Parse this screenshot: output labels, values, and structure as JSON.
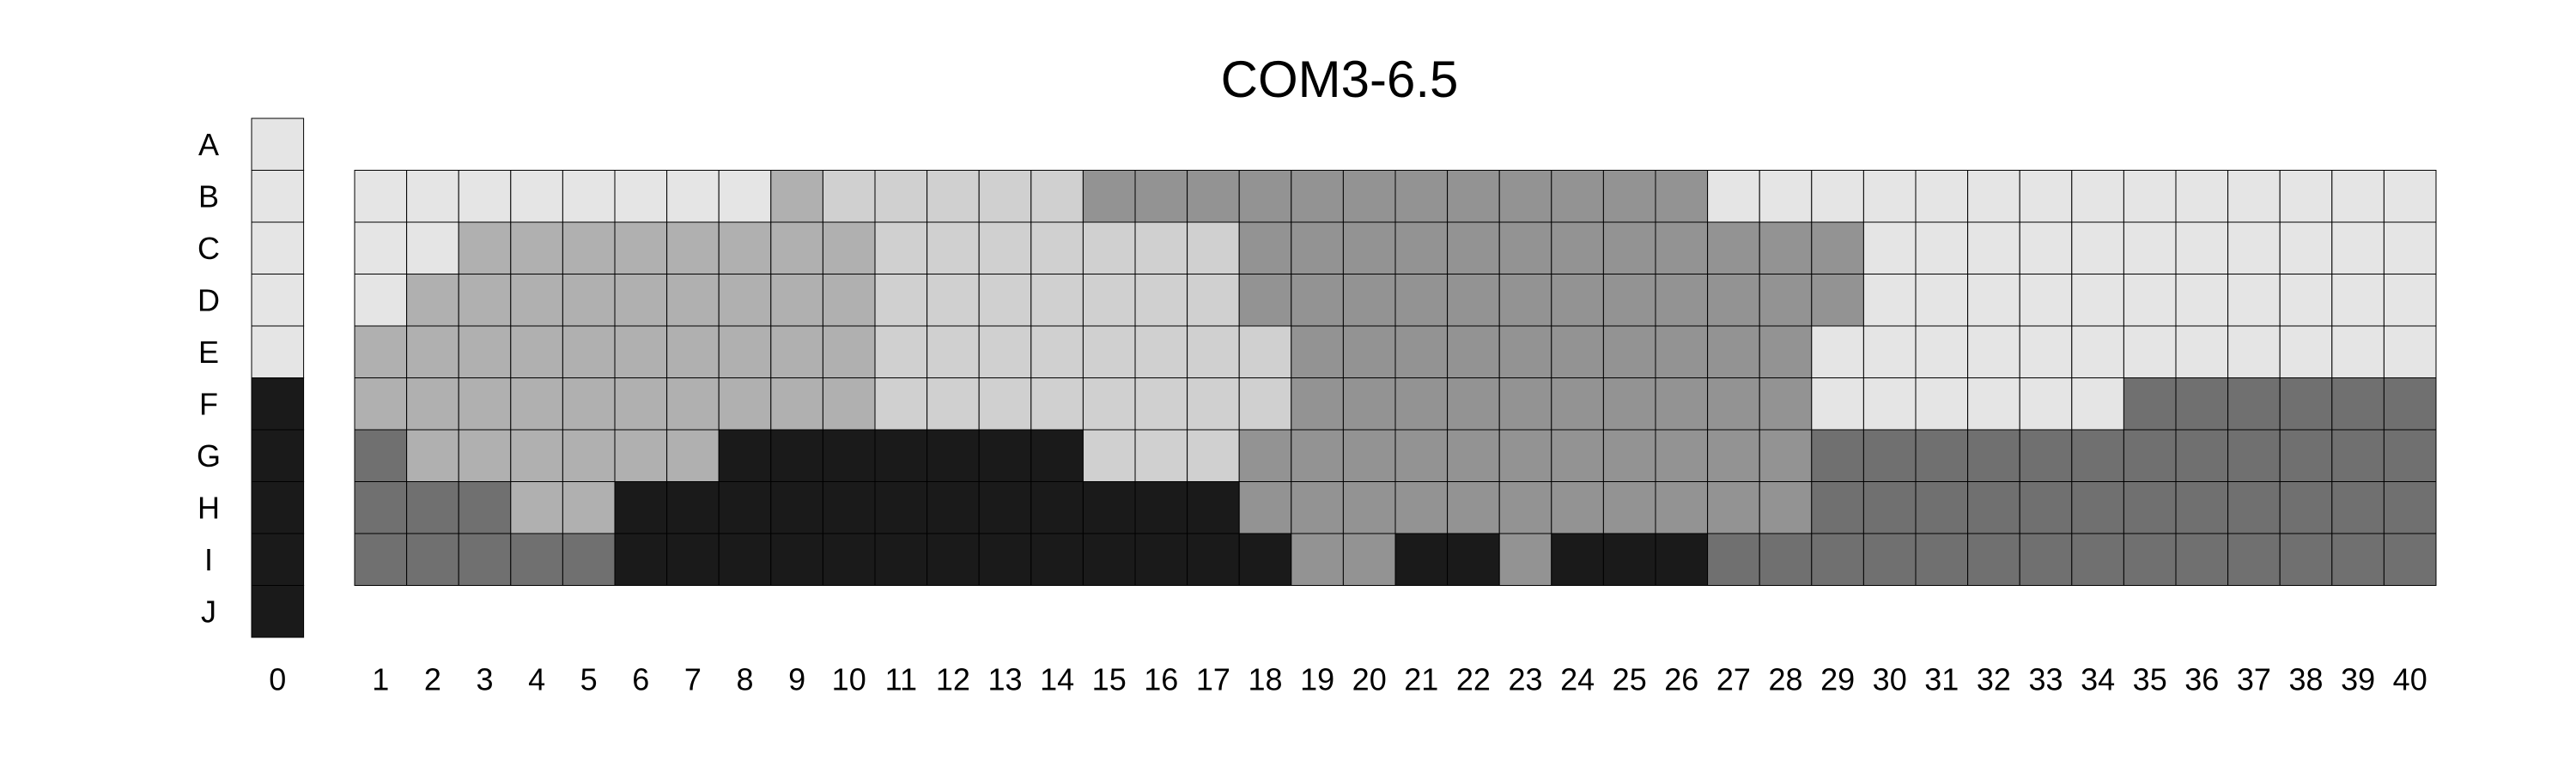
{
  "chart_data": {
    "type": "heatmap",
    "title": "COM3-6.5",
    "rows": [
      "A",
      "B",
      "C",
      "D",
      "E",
      "F",
      "G",
      "H",
      "I",
      "J"
    ],
    "key_column": {
      "label": "0",
      "levels": [
        "light",
        "light",
        "light",
        "light",
        "light",
        "black",
        "black",
        "black",
        "black",
        "black"
      ]
    },
    "columns": [
      "1",
      "2",
      "3",
      "4",
      "5",
      "6",
      "7",
      "8",
      "9",
      "10",
      "11",
      "12",
      "13",
      "14",
      "15",
      "16",
      "17",
      "18",
      "19",
      "20",
      "21",
      "22",
      "23",
      "24",
      "25",
      "26",
      "27",
      "28",
      "29",
      "30",
      "31",
      "32",
      "33",
      "34",
      "35",
      "36",
      "37",
      "38",
      "39",
      "40"
    ],
    "grid_rows": [
      "B",
      "C",
      "D",
      "E",
      "F",
      "G",
      "H",
      "I"
    ],
    "level_colors": {
      "light": "#e5e5e5",
      "pale": "#d0d0d0",
      "mid": "#b0b0b0",
      "gray": "#939393",
      "dark": "#707070",
      "black": "#1a1a1a"
    },
    "code_map": {
      "L": "light",
      "P": "pale",
      "M": "mid",
      "G": "gray",
      "D": "dark",
      "K": "black"
    },
    "grid": [
      "LLLLLLLLMPPPPPGGGGGGGGGGGGLLLLLLLLLLLLLL",
      "LLMMMMMMMMPPPPPPPGGGGGGGGGGGGLLLLLLLLLLL",
      "LMMMMMMMMMPPPPPPPGGGGGGGGGGGGLLLLLLLLLLL",
      "MMMMMMMMMMPPPPPPPPGGGGGGGGGGLLLLLLLLLLLL",
      "MMMMMMMMMMPPPPPPPPGGGGGGGGGGLLLLLLDDDDDD",
      "DMMMMMMKKKKKKKPPPGGGGGGGGGGGDDDDDDDDDDDD",
      "DDDMMKKKKKKKKKKKKGGGGGGGGGGGDDDDDDDDDDDD",
      "DDDDDKKKKKKKKKKKKKGGKKGKKKDDDDDDDDDDDDDD"
    ]
  }
}
